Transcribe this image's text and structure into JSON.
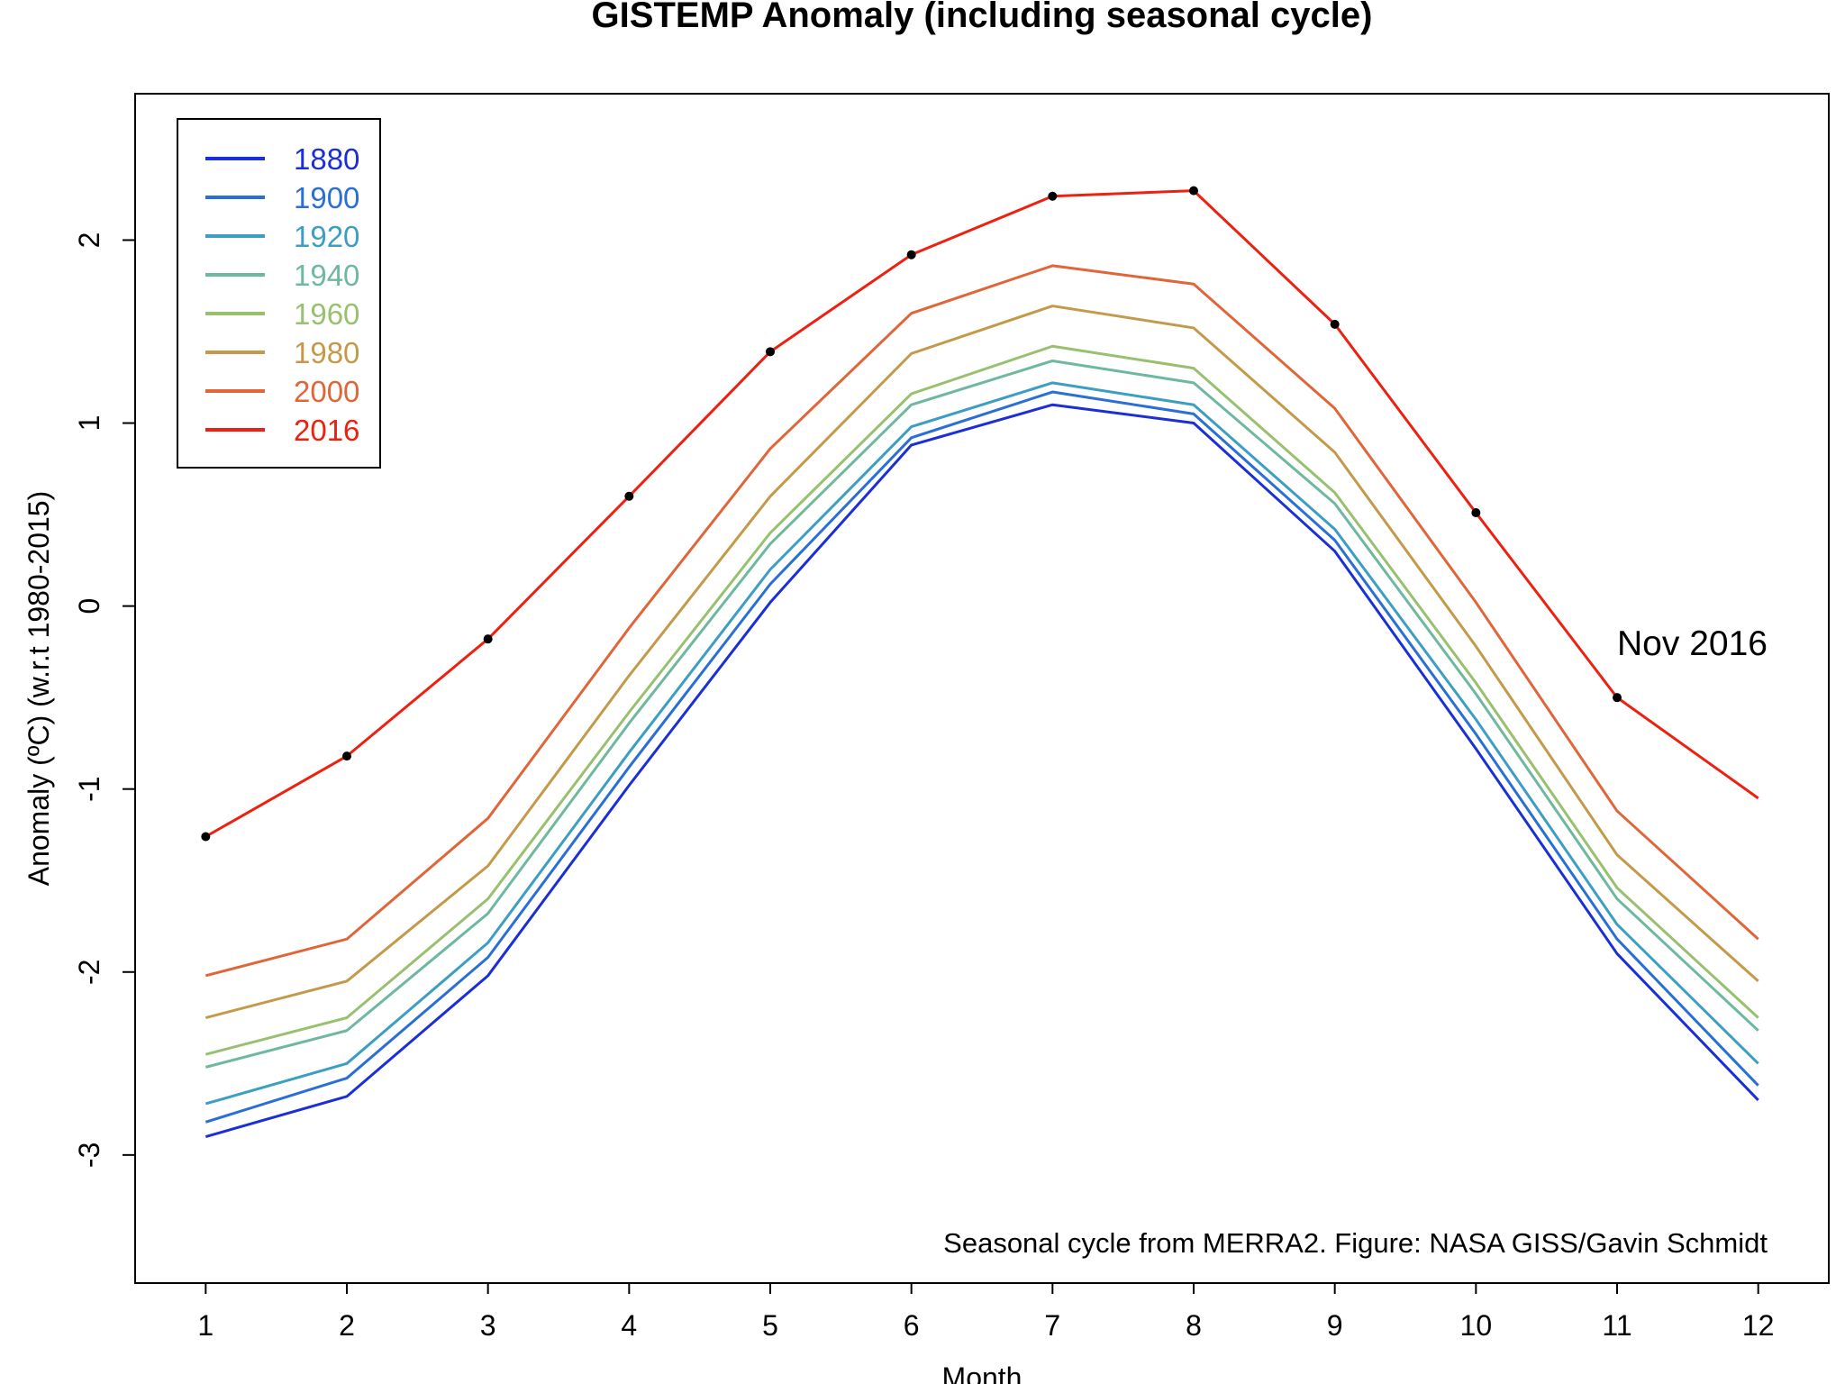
{
  "chart_data": {
    "type": "line",
    "title": "GISTEMP Anomaly (including seasonal cycle)",
    "xlabel": "Month",
    "ylabel": "Anomaly (ºC) (w.r.t 1980-2015)",
    "xlim": [
      0.5,
      12.5
    ],
    "ylim": [
      -3.7,
      2.8
    ],
    "x_ticks": [
      1,
      2,
      3,
      4,
      5,
      6,
      7,
      8,
      9,
      10,
      11,
      12
    ],
    "y_ticks": [
      -3,
      -2,
      -1,
      0,
      1,
      2
    ],
    "grid": false,
    "legend": {
      "placement": "top-left",
      "entries": [
        {
          "label": "1880",
          "color": "#1a2fd8"
        },
        {
          "label": "1900",
          "color": "#2a6fd6"
        },
        {
          "label": "1920",
          "color": "#3d9ec4"
        },
        {
          "label": "1940",
          "color": "#6fb8a0"
        },
        {
          "label": "1960",
          "color": "#98c06e"
        },
        {
          "label": "1980",
          "color": "#c49a4a"
        },
        {
          "label": "2000",
          "color": "#e0663a"
        },
        {
          "label": "2016",
          "color": "#ee2010"
        }
      ]
    },
    "series": [
      {
        "name": "1880",
        "color": "#1a2fd8",
        "values": [
          -2.9,
          -2.68,
          -2.02,
          -0.98,
          0.02,
          0.88,
          1.1,
          1.0,
          0.3,
          -0.78,
          -1.9,
          -2.7
        ]
      },
      {
        "name": "1900",
        "color": "#2a6fd6",
        "values": [
          -2.82,
          -2.58,
          -1.92,
          -0.88,
          0.12,
          0.92,
          1.17,
          1.05,
          0.36,
          -0.7,
          -1.82,
          -2.62
        ]
      },
      {
        "name": "1920",
        "color": "#3d9ec4",
        "values": [
          -2.72,
          -2.5,
          -1.84,
          -0.8,
          0.2,
          0.98,
          1.22,
          1.1,
          0.42,
          -0.62,
          -1.74,
          -2.5
        ]
      },
      {
        "name": "1940",
        "color": "#6fb8a0",
        "values": [
          -2.52,
          -2.32,
          -1.68,
          -0.64,
          0.34,
          1.1,
          1.34,
          1.22,
          0.56,
          -0.48,
          -1.6,
          -2.32
        ]
      },
      {
        "name": "1960",
        "color": "#98c06e",
        "values": [
          -2.45,
          -2.25,
          -1.6,
          -0.58,
          0.4,
          1.16,
          1.42,
          1.3,
          0.62,
          -0.42,
          -1.54,
          -2.25
        ]
      },
      {
        "name": "1980",
        "color": "#c49a4a",
        "values": [
          -2.25,
          -2.05,
          -1.42,
          -0.38,
          0.6,
          1.38,
          1.64,
          1.52,
          0.84,
          -0.22,
          -1.36,
          -2.05
        ]
      },
      {
        "name": "2000",
        "color": "#e0663a",
        "values": [
          -2.02,
          -1.82,
          -1.16,
          -0.12,
          0.86,
          1.6,
          1.86,
          1.76,
          1.08,
          0.02,
          -1.12,
          -1.82
        ]
      },
      {
        "name": "2016",
        "color": "#ee2010",
        "values": [
          -1.26,
          -0.82,
          -0.18,
          0.6,
          1.39,
          1.92,
          2.24,
          2.27,
          1.54,
          0.51,
          -0.5,
          -1.05
        ]
      }
    ],
    "highlight_points": {
      "series": "2016",
      "x": [
        1,
        2,
        3,
        4,
        5,
        6,
        7,
        8,
        9,
        10,
        11
      ],
      "y": [
        -1.26,
        -0.82,
        -0.18,
        0.6,
        1.39,
        1.92,
        2.24,
        2.27,
        1.54,
        0.51,
        -0.5
      ]
    },
    "annotations": [
      {
        "text": "Nov 2016",
        "x": 11,
        "y": -0.5
      },
      {
        "text": "Seasonal cycle from MERRA2. Figure: NASA GISS/Gavin Schmidt",
        "placement": "bottom-right"
      }
    ]
  }
}
